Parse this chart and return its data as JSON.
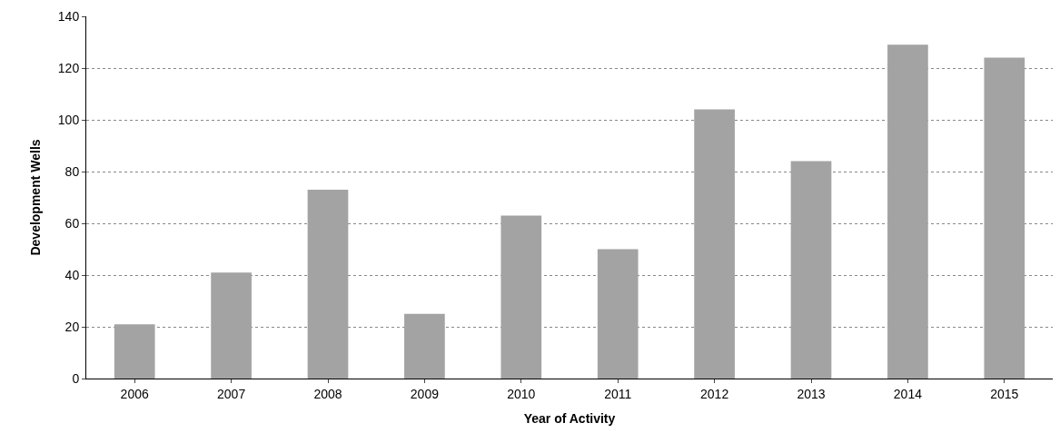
{
  "chart_data": {
    "type": "bar",
    "xlabel": "Year of Activity",
    "ylabel": "Development Wells",
    "categories": [
      "2006",
      "2007",
      "2008",
      "2009",
      "2010",
      "2011",
      "2012",
      "2013",
      "2014",
      "2015"
    ],
    "values": [
      21,
      41,
      73,
      25,
      63,
      50,
      104,
      84,
      129,
      124
    ],
    "color": "#a3a3a3",
    "ylim": [
      0,
      140
    ],
    "yticks": [
      0,
      20,
      40,
      60,
      80,
      100,
      120,
      140
    ],
    "grid": "y"
  }
}
